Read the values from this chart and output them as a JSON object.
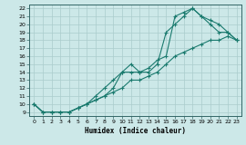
{
  "xlabel": "Humidex (Indice chaleur)",
  "ylabel": "",
  "xlim": [
    -0.5,
    23.5
  ],
  "ylim": [
    8.5,
    22.5
  ],
  "xticks": [
    0,
    1,
    2,
    3,
    4,
    5,
    6,
    7,
    8,
    9,
    10,
    11,
    12,
    13,
    14,
    15,
    16,
    17,
    18,
    19,
    20,
    21,
    22,
    23
  ],
  "yticks": [
    9,
    10,
    11,
    12,
    13,
    14,
    15,
    16,
    17,
    18,
    19,
    20,
    21,
    22
  ],
  "bg_color": "#cce8e8",
  "line_color": "#1a7a6e",
  "grid_color": "#aacccc",
  "line1_x": [
    0,
    1,
    2,
    3,
    4,
    5,
    6,
    7,
    8,
    9,
    10,
    11,
    12,
    13,
    14,
    15,
    16,
    17,
    18,
    19,
    20,
    21,
    22,
    23
  ],
  "line1_y": [
    10,
    9,
    9,
    9,
    9,
    9.5,
    10,
    10.5,
    11,
    12,
    14,
    15,
    14,
    14,
    15,
    19,
    20,
    21,
    22,
    21,
    20.5,
    20,
    19,
    18
  ],
  "line2_x": [
    0,
    1,
    2,
    3,
    4,
    5,
    6,
    7,
    8,
    9,
    10,
    11,
    12,
    13,
    14,
    15,
    16,
    17,
    18,
    19,
    20,
    21,
    22,
    23
  ],
  "line2_y": [
    10,
    9,
    9,
    9,
    9,
    9.5,
    10,
    11,
    12,
    13,
    14,
    14,
    14,
    14.5,
    15.5,
    16,
    21,
    21.5,
    22,
    21,
    20,
    19,
    19,
    18
  ],
  "line3_x": [
    0,
    1,
    2,
    3,
    4,
    5,
    6,
    7,
    8,
    9,
    10,
    11,
    12,
    13,
    14,
    15,
    16,
    17,
    18,
    19,
    20,
    21,
    22,
    23
  ],
  "line3_y": [
    10,
    9,
    9,
    9,
    9,
    9.5,
    10,
    10.5,
    11,
    11.5,
    12,
    13,
    13,
    13.5,
    14,
    15,
    16,
    16.5,
    17,
    17.5,
    18,
    18,
    18.5,
    18
  ]
}
